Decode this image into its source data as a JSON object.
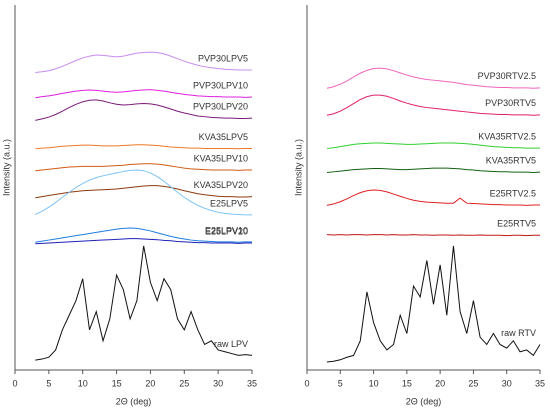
{
  "chart_data": [
    {
      "type": "line",
      "xlabel": "2Θ (deg)",
      "ylabel": "Intensity (a.u.)",
      "x": [
        3,
        4,
        5,
        6,
        7,
        8,
        9,
        10,
        11,
        12,
        13,
        14,
        15,
        16,
        17,
        18,
        19,
        20,
        21,
        22,
        23,
        24,
        25,
        26,
        27,
        28,
        29,
        30,
        31,
        32,
        33,
        34,
        35
      ],
      "xlim": [
        0,
        35
      ],
      "xticks": [
        0,
        5,
        10,
        15,
        20,
        25,
        30,
        35
      ],
      "ylim": [
        0,
        100
      ],
      "series": [
        {
          "name": "PVP30LPV5",
          "color": "#c88cf0",
          "values": [
            81.5,
            81.7,
            82,
            82.5,
            83.2,
            84,
            84.8,
            85.5,
            86,
            86.3,
            86.2,
            86,
            85.8,
            86,
            86.4,
            86.8,
            87,
            87.1,
            87,
            86.6,
            86,
            85.3,
            84.6,
            84,
            83.5,
            83.1,
            82.8,
            82.6,
            82.4,
            82.3,
            82.2,
            82.2,
            82.2
          ]
        },
        {
          "name": "PVP30LPV10",
          "color": "#e020e0",
          "values": [
            74.6,
            74.9,
            75.1,
            75.4,
            75.8,
            76.1,
            76.4,
            76.6,
            76.7,
            76.6,
            76.4,
            76.2,
            76.1,
            76.2,
            76.4,
            76.6,
            76.7,
            76.8,
            76.6,
            76.4,
            76.1,
            75.8,
            75.5,
            75.3,
            75.1,
            75,
            74.9,
            74.9,
            74.8,
            74.8,
            74.8,
            74.7,
            74.8
          ]
        },
        {
          "name": "PVP30LPV20",
          "color": "#7a1a7a",
          "values": [
            68.4,
            68.8,
            69.3,
            70,
            70.9,
            71.9,
            72.8,
            73.5,
            73.9,
            74,
            73.7,
            73.2,
            72.8,
            72.6,
            72.7,
            72.9,
            73,
            72.9,
            72.6,
            72.1,
            71.5,
            70.9,
            70.4,
            70,
            69.6,
            69.4,
            69.2,
            69.1,
            69,
            69,
            68.9,
            68.9,
            69
          ]
        },
        {
          "name": "KVA35LPV5",
          "color": "#f07828",
          "values": [
            60.6,
            60.8,
            60.9,
            61.1,
            61.3,
            61.4,
            61.5,
            61.6,
            61.6,
            61.5,
            61.4,
            61.4,
            61.4,
            61.5,
            61.6,
            61.7,
            61.7,
            61.6,
            61.5,
            61.3,
            61.1,
            61,
            60.9,
            60.8,
            60.8,
            60.7,
            60.7,
            60.7,
            60.7,
            60.7,
            60.6,
            60.7,
            60.7
          ]
        },
        {
          "name": "KVA35LPV10",
          "color": "#d05a14",
          "values": [
            54.6,
            54.8,
            55,
            55.2,
            55.4,
            55.6,
            55.7,
            55.8,
            55.8,
            55.8,
            55.8,
            55.9,
            56,
            56.1,
            56.3,
            56.4,
            56.5,
            56.5,
            56.4,
            56.2,
            55.9,
            55.6,
            55.3,
            55.1,
            55,
            54.9,
            54.8,
            54.8,
            54.8,
            54.8,
            54.7,
            54.8,
            54.8
          ]
        },
        {
          "name": "KVA35LPV20",
          "color": "#8b3a0f",
          "values": [
            47.2,
            47.5,
            47.8,
            48.1,
            48.4,
            48.7,
            48.9,
            49.1,
            49.2,
            49.3,
            49.4,
            49.5,
            49.6,
            49.8,
            50,
            50.2,
            50.4,
            50.5,
            50.5,
            50.3,
            50,
            49.6,
            49.1,
            48.7,
            48.3,
            48,
            47.8,
            47.6,
            47.5,
            47.5,
            47.4,
            47.4,
            47.5
          ]
        },
        {
          "name": "E25LPV5",
          "color": "#7cc4f8",
          "values": [
            42.6,
            43.5,
            44.6,
            45.9,
            47.3,
            48.7,
            50,
            51.1,
            52,
            52.7,
            53.2,
            53.6,
            54,
            54.4,
            54.7,
            54.8,
            54.6,
            54,
            53,
            51.7,
            50.2,
            48.7,
            47.3,
            46.1,
            45.1,
            44.3,
            43.7,
            43.2,
            42.9,
            42.7,
            42.6,
            42.5,
            42.5
          ]
        },
        {
          "name": "E25LPV10",
          "color": "#1e7ee0",
          "values": [
            35,
            35.3,
            35.6,
            35.9,
            36.2,
            36.5,
            36.8,
            37.1,
            37.4,
            37.7,
            38,
            38.3,
            38.6,
            38.8,
            38.9,
            38.8,
            38.5,
            38.1,
            37.6,
            37.1,
            36.6,
            36.2,
            35.9,
            35.6,
            35.4,
            35.3,
            35.2,
            35.1,
            35.1,
            35.1,
            35,
            35.1,
            35.1
          ]
        },
        {
          "name": "E25LPV20",
          "color": "#2020b8",
          "values": [
            34.6,
            34.7,
            34.8,
            34.9,
            35,
            35.1,
            35.2,
            35.3,
            35.4,
            35.5,
            35.6,
            35.7,
            35.8,
            35.9,
            36,
            36,
            35.9,
            35.8,
            35.7,
            35.5,
            35.4,
            35.2,
            35.1,
            35,
            34.9,
            34.9,
            34.8,
            34.8,
            34.8,
            34.8,
            34.7,
            34.8,
            34.8
          ]
        },
        {
          "name": "raw LPV",
          "color": "#111111",
          "values": [
            2.7,
            3,
            3.5,
            5.5,
            11,
            15,
            19,
            25,
            11,
            16,
            8,
            14,
            26,
            22,
            14,
            19,
            34,
            24,
            19,
            25,
            22,
            14,
            11,
            16,
            11,
            7,
            8,
            5.5,
            5,
            4.5,
            4,
            4.2,
            4
          ]
        }
      ]
    },
    {
      "type": "line",
      "xlabel": "2Θ (deg)",
      "ylabel": "Intensity (a.u.)",
      "x": [
        3,
        4,
        5,
        6,
        7,
        8,
        9,
        10,
        11,
        12,
        13,
        14,
        15,
        16,
        17,
        18,
        19,
        20,
        21,
        22,
        23,
        24,
        25,
        26,
        27,
        28,
        29,
        30,
        31,
        32,
        33,
        34,
        35
      ],
      "xlim": [
        0,
        35
      ],
      "xticks": [
        0,
        5,
        10,
        15,
        20,
        25,
        30,
        35
      ],
      "ylim": [
        0,
        100
      ],
      "series": [
        {
          "name": "PVP30RTV2.5",
          "color": "#f064c0",
          "values": [
            77.2,
            77.6,
            78.3,
            79.2,
            80.3,
            81.3,
            82.1,
            82.6,
            82.7,
            82.5,
            82,
            81.4,
            80.8,
            80.3,
            79.9,
            79.6,
            79.4,
            79.2,
            79,
            78.8,
            78.5,
            78.2,
            78,
            77.8,
            77.6,
            77.5,
            77.4,
            77.4,
            77.3,
            77.3,
            77.3,
            77.2,
            77.3
          ]
        },
        {
          "name": "PVP30RTV5",
          "color": "#e0206a",
          "values": [
            69.8,
            70.2,
            70.9,
            71.9,
            73,
            74.1,
            74.9,
            75.3,
            75.3,
            75,
            74.4,
            73.7,
            73.1,
            72.6,
            72.2,
            71.9,
            71.7,
            71.5,
            71.3,
            71.1,
            70.9,
            70.7,
            70.5,
            70.3,
            70.2,
            70.1,
            70,
            70,
            69.9,
            69.9,
            69.9,
            69.8,
            69.9
          ]
        },
        {
          "name": "KVA35RTV2.5",
          "color": "#30d030",
          "values": [
            60.7,
            60.9,
            61.2,
            61.5,
            61.8,
            62,
            62.1,
            62.2,
            62.2,
            62.1,
            62,
            61.9,
            61.8,
            61.8,
            61.9,
            62,
            62.1,
            62.2,
            62.2,
            62.2,
            62.1,
            62,
            61.8,
            61.6,
            61.4,
            61.2,
            61.1,
            61,
            60.9,
            60.9,
            60.8,
            60.8,
            60.8
          ]
        },
        {
          "name": "KVA35RTV5",
          "color": "#106010",
          "values": [
            54.1,
            54.3,
            54.5,
            54.7,
            54.9,
            55,
            55.1,
            55.2,
            55.2,
            55.1,
            55,
            54.9,
            54.9,
            55,
            55.1,
            55.2,
            55.3,
            55.3,
            55.3,
            55.2,
            55.1,
            54.9,
            54.8,
            54.6,
            54.5,
            54.4,
            54.3,
            54.3,
            54.2,
            54.2,
            54.2,
            54.1,
            54.2
          ]
        },
        {
          "name": "E25RTV2.5",
          "color": "#e02020",
          "values": [
            45.1,
            45.5,
            46.1,
            46.9,
            47.8,
            48.6,
            49.1,
            49.3,
            49.2,
            48.8,
            48.2,
            47.6,
            47,
            46.5,
            46.2,
            46,
            45.9,
            45.8,
            45.7,
            45.7,
            47.1,
            45.7,
            45.6,
            45.5,
            45.4,
            45.3,
            45.3,
            45.2,
            45.2,
            45.2,
            45.1,
            45.2,
            45.2
          ]
        },
        {
          "name": "E25RTV5",
          "color": "#c01818",
          "values": [
            37.1,
            37,
            37.1,
            37,
            37.1,
            37.1,
            37,
            37.1,
            37.1,
            37,
            37.1,
            37,
            37,
            37.1,
            37,
            37,
            36.9,
            37,
            37,
            36.9,
            37,
            36.9,
            36.9,
            37,
            36.9,
            36.9,
            36.9,
            36.8,
            36.9,
            36.9,
            36.8,
            36.9,
            36.9
          ]
        },
        {
          "name": "raw RTV",
          "color": "#111111",
          "values": [
            2.2,
            2.4,
            2.8,
            3.5,
            4,
            8,
            21.4,
            13,
            8,
            5.5,
            7,
            15,
            10,
            23,
            20,
            30,
            18,
            28.8,
            15,
            34,
            16,
            10,
            19,
            9,
            7,
            10,
            7,
            6,
            8,
            5,
            5.5,
            4,
            7
          ]
        }
      ]
    }
  ]
}
